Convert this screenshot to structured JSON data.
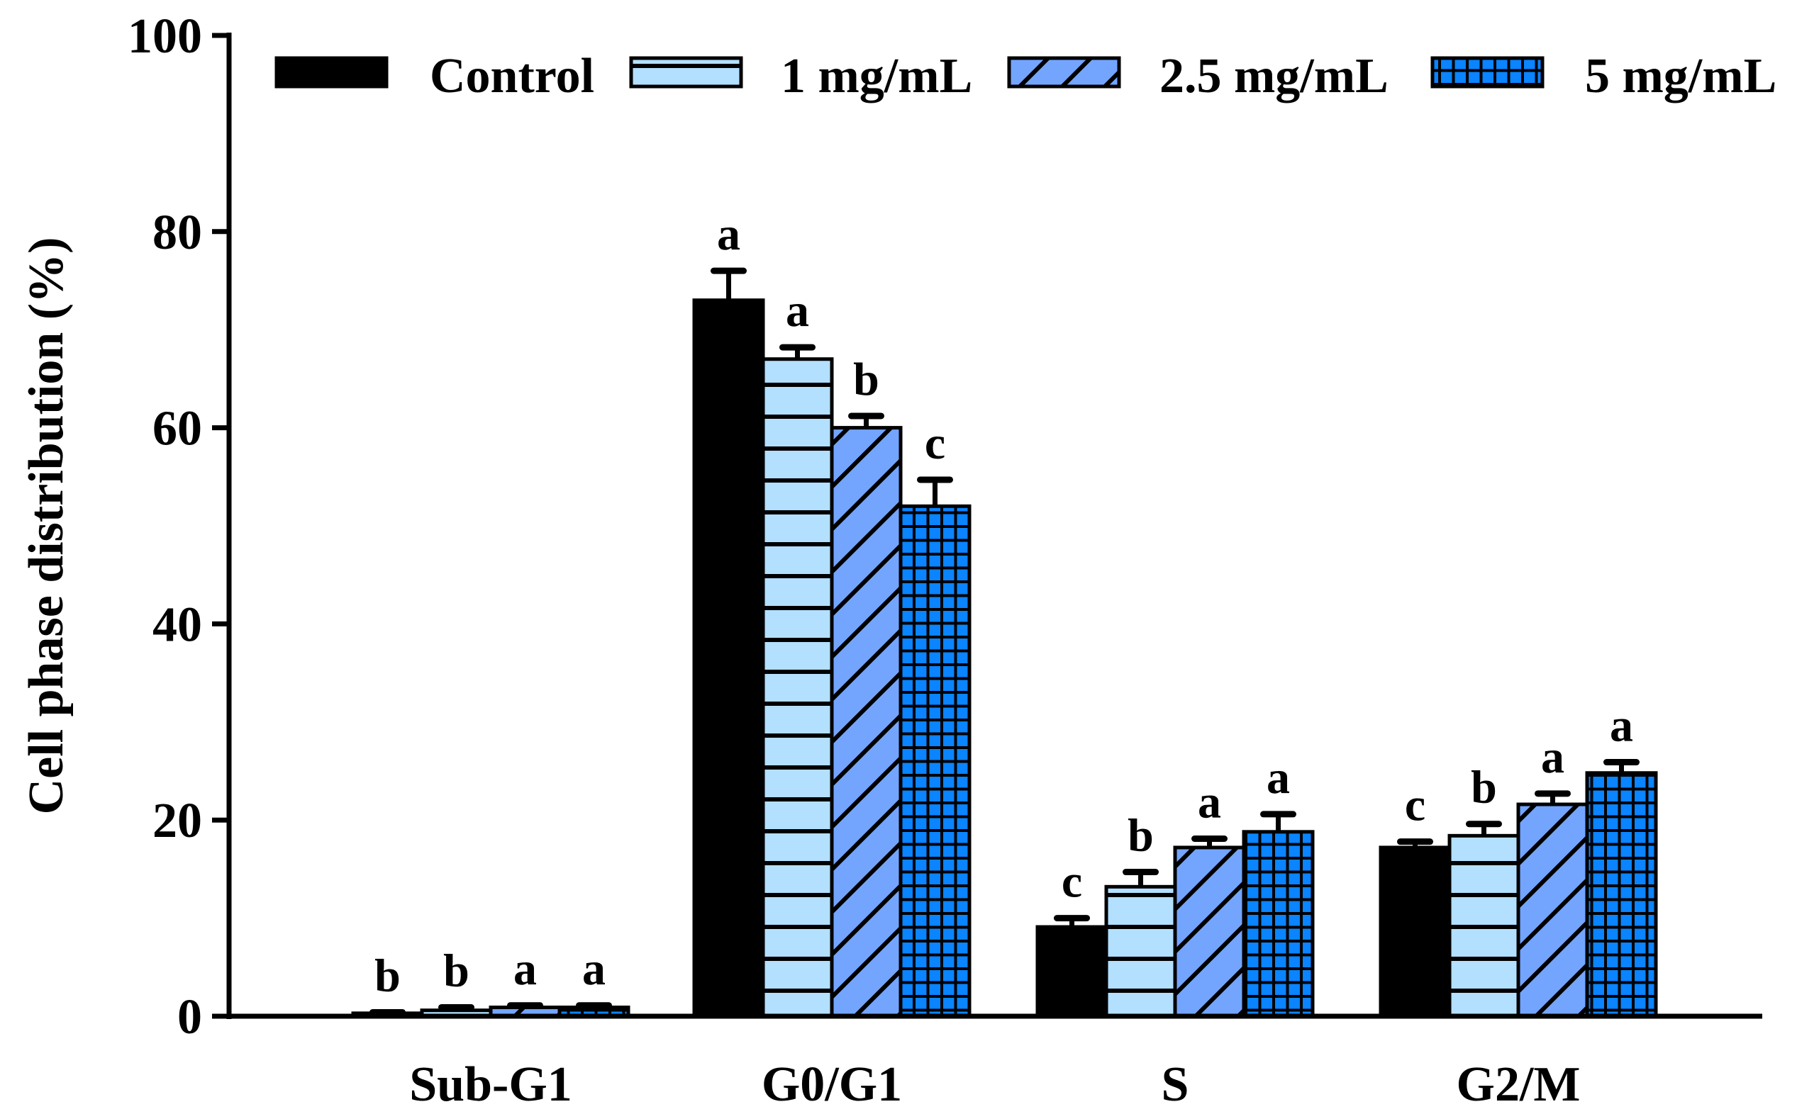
{
  "chart_data": {
    "type": "bar",
    "title": "",
    "xlabel": "",
    "ylabel": "Cell phase distribution (%)",
    "ylim": [
      0,
      100
    ],
    "yticks": [
      0,
      20,
      40,
      60,
      80,
      100
    ],
    "grid": false,
    "legend_position": "top",
    "categories": [
      "Sub-G1",
      "G0/G1",
      "S",
      "G2/M"
    ],
    "series": [
      {
        "name": "Control",
        "color": "#000000",
        "pattern": "solid",
        "values": [
          0.3,
          73.0,
          9.1,
          17.2
        ],
        "errors": [
          0.1,
          3.0,
          0.9,
          0.6
        ],
        "letters": [
          "b",
          "a",
          "c",
          "c"
        ]
      },
      {
        "name": "1 mg/mL",
        "color": "#B3E0FF",
        "pattern": "horizontal",
        "values": [
          0.6,
          67.0,
          13.2,
          18.4
        ],
        "errors": [
          0.3,
          1.2,
          1.5,
          1.2
        ],
        "letters": [
          "b",
          "a",
          "b",
          "b"
        ]
      },
      {
        "name": "2.5 mg/mL",
        "color": "#73A5FF",
        "pattern": "diagonal",
        "values": [
          0.9,
          60.0,
          17.2,
          21.6
        ],
        "errors": [
          0.2,
          1.2,
          0.9,
          1.1
        ],
        "letters": [
          "a",
          "b",
          "a",
          "a"
        ]
      },
      {
        "name": "5 mg/mL",
        "color": "#0A84FF",
        "pattern": "grid",
        "values": [
          0.9,
          52.0,
          18.8,
          24.8
        ],
        "errors": [
          0.2,
          2.7,
          1.8,
          1.1
        ],
        "letters": [
          "a",
          "c",
          "a",
          "a"
        ]
      }
    ]
  }
}
